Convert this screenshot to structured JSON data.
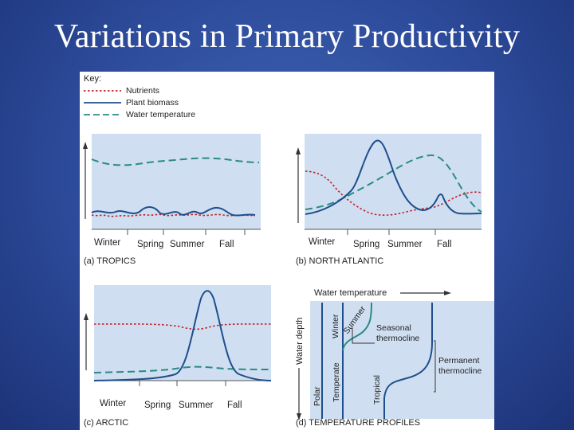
{
  "slide": {
    "title": "Variations in Primary Productivity"
  },
  "key": {
    "heading": "Key:",
    "items": [
      {
        "label": "Nutrients",
        "color": "#c0202a",
        "style": "dotted"
      },
      {
        "label": "Plant biomass",
        "color": "#1f4e8c",
        "style": "solid"
      },
      {
        "label": "Water temperature",
        "color": "#2b8a86",
        "style": "dashed"
      }
    ]
  },
  "panels": {
    "tropics": {
      "caption": "(a) TROPICS",
      "seasons": [
        "Winter",
        "Spring",
        "Summer",
        "Fall"
      ]
    },
    "north_atlantic": {
      "caption": "(b) NORTH ATLANTIC",
      "seasons": [
        "Winter",
        "Spring",
        "Summer",
        "Fall"
      ]
    },
    "arctic": {
      "caption": "(c) ARCTIC",
      "seasons": [
        "Winter",
        "Spring",
        "Summer",
        "Fall"
      ]
    },
    "profiles": {
      "caption": "(d) TEMPERATURE PROFILES",
      "x_axis_label": "Water temperature",
      "y_axis_label": "Water depth",
      "curve_labels": [
        "Winter",
        "Summer",
        "Polar",
        "Temperate",
        "Tropical"
      ],
      "seasonal_label_lines": [
        "Seasonal",
        "thermocline"
      ],
      "permanent_label_lines": [
        "Permanent",
        "thermocline"
      ]
    }
  },
  "colors": {
    "panel_bg": "#cfdff1",
    "nutrients": "#c0202a",
    "biomass": "#1f4e8c",
    "temperature": "#2b8a86",
    "profile_curve": "#1f4e8c",
    "summer_curve": "#2b8a86"
  }
}
